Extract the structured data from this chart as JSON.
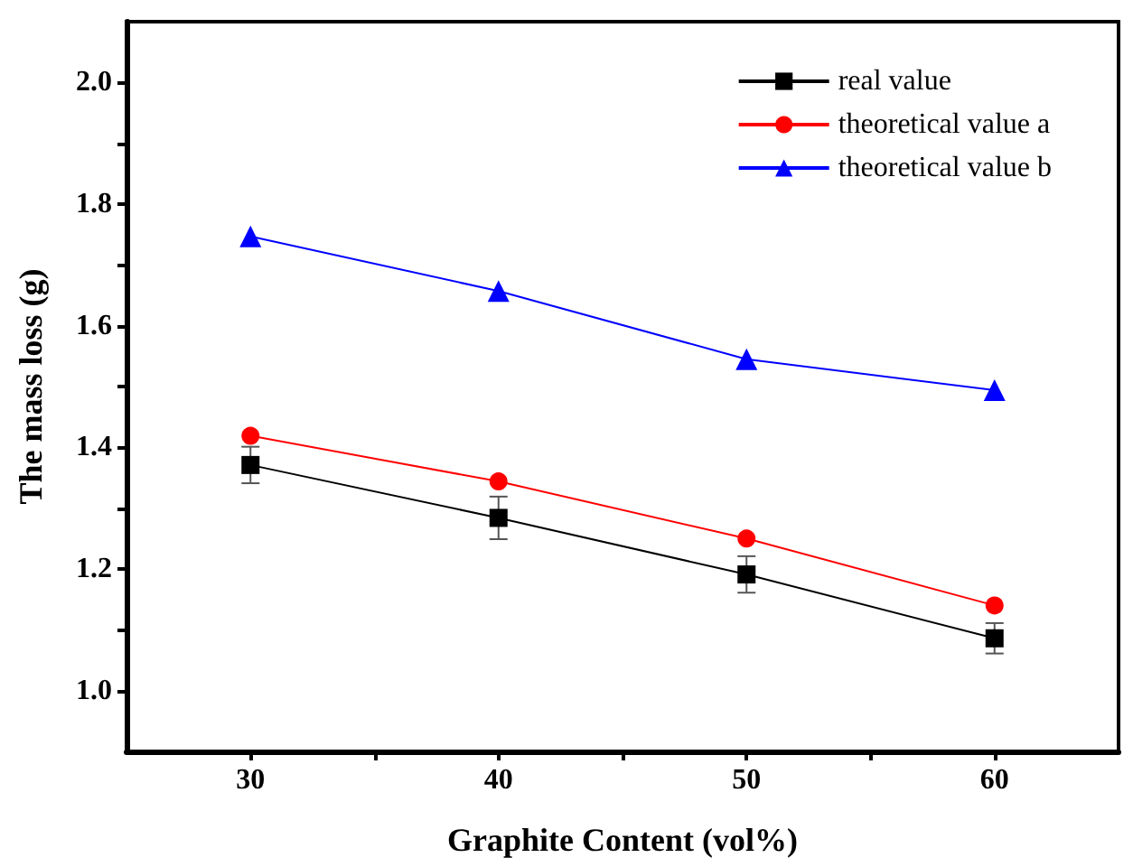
{
  "chart_data": {
    "type": "line",
    "xlabel": "Graphite Content (vol%)",
    "ylabel": "The mass loss (g)",
    "x": [
      30,
      40,
      50,
      60
    ],
    "xlim": [
      25,
      65
    ],
    "xticks": [
      30,
      {
        "value": 35,
        "label": null
      },
      40,
      {
        "value": 45,
        "label": null
      },
      50,
      {
        "value": 55,
        "label": null
      },
      60
    ],
    "ylim": [
      0.9,
      2.1
    ],
    "yticks": [
      {
        "value": 1.0,
        "label": "1.0"
      },
      {
        "value": 1.1,
        "label": null
      },
      {
        "value": 1.2,
        "label": "1.2"
      },
      {
        "value": 1.3,
        "label": null
      },
      {
        "value": 1.4,
        "label": "1.4"
      },
      {
        "value": 1.5,
        "label": null
      },
      {
        "value": 1.6,
        "label": "1.6"
      },
      {
        "value": 1.7,
        "label": null
      },
      {
        "value": 1.8,
        "label": "1.8"
      },
      {
        "value": 1.9,
        "label": null
      },
      {
        "value": 2.0,
        "label": "2.0"
      }
    ],
    "series": [
      {
        "name": "real value",
        "color": "#000000",
        "marker": "square",
        "values": [
          1.371,
          1.284,
          1.191,
          1.086
        ],
        "errors": [
          0.03,
          0.035,
          0.03,
          0.025
        ]
      },
      {
        "name": "theoretical value a",
        "color": "#ff0000",
        "marker": "circle",
        "values": [
          1.419,
          1.344,
          1.25,
          1.14
        ]
      },
      {
        "name": "theoretical value b",
        "color": "#0000ff",
        "marker": "triangle",
        "values": [
          1.747,
          1.657,
          1.545,
          1.494
        ]
      }
    ],
    "grid": false,
    "legend": "top right",
    "line_style": "solid"
  }
}
